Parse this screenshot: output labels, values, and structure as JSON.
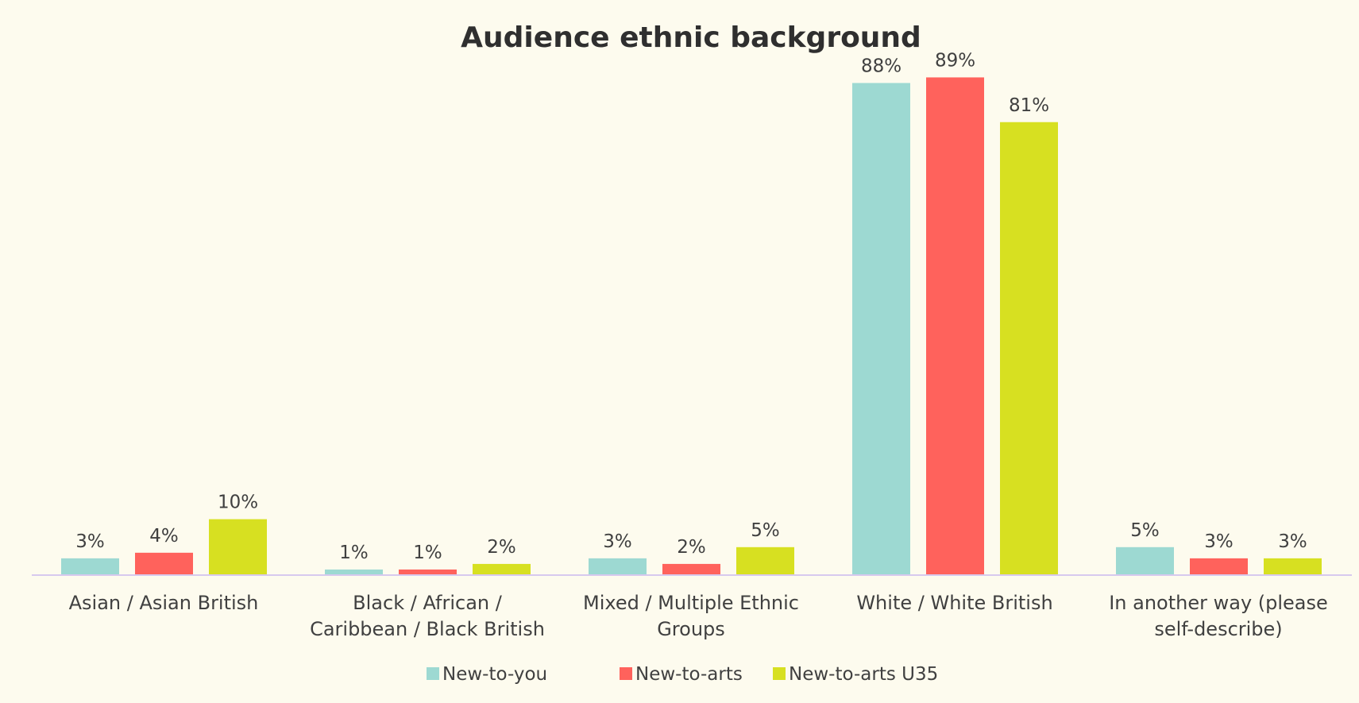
{
  "chart_data": {
    "type": "bar",
    "title": "Audience ethnic background",
    "categories": [
      [
        "Asian / Asian British"
      ],
      [
        "Black / African /",
        "Caribbean / Black British"
      ],
      [
        "Mixed / Multiple Ethnic",
        "Groups"
      ],
      [
        "White / White British"
      ],
      [
        "In another way (please",
        "self-describe)"
      ]
    ],
    "series": [
      {
        "name": "New-to-you",
        "color": "#9dd9d2",
        "values": [
          3,
          1,
          3,
          88,
          5
        ],
        "labels": [
          "3%",
          "1%",
          "3%",
          "88%",
          "5%"
        ]
      },
      {
        "name": "New-to-arts",
        "color": "#ff625c",
        "values": [
          4,
          1,
          2,
          89,
          3
        ],
        "labels": [
          "4%",
          "1%",
          "2%",
          "89%",
          "3%"
        ]
      },
      {
        "name": "New-to-arts U35",
        "color": "#d7e021",
        "values": [
          10,
          2,
          5,
          81,
          3
        ],
        "labels": [
          "10%",
          "2%",
          "5%",
          "81%",
          "3%"
        ]
      }
    ],
    "ylim": [
      0,
      100
    ],
    "grid": false,
    "legend_position": "bottom"
  }
}
